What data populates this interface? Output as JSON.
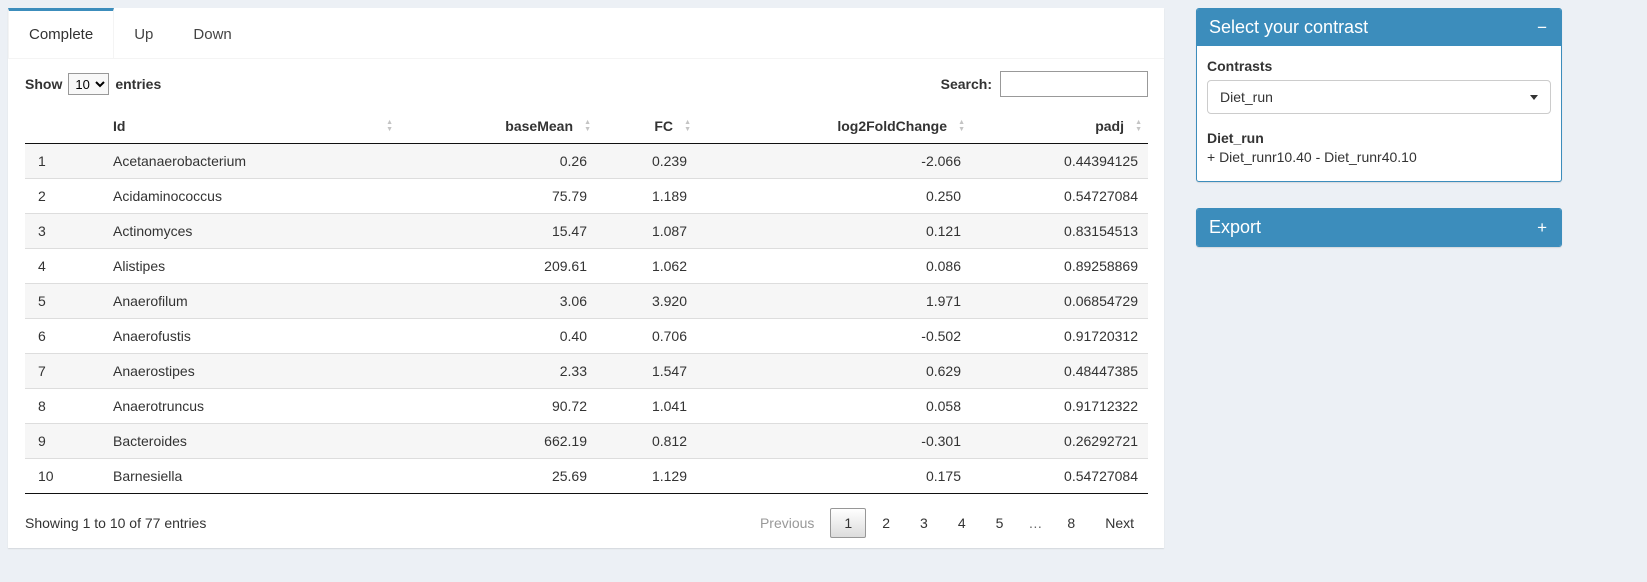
{
  "colors": {
    "accent": "#3c8dbc"
  },
  "tabs": [
    {
      "label": "Complete",
      "active": true
    },
    {
      "label": "Up",
      "active": false
    },
    {
      "label": "Down",
      "active": false
    }
  ],
  "table_controls": {
    "show_label": "Show",
    "page_length": "10",
    "entries_label": "entries",
    "search_label": "Search:",
    "search_value": ""
  },
  "table": {
    "columns": [
      "Id",
      "baseMean",
      "FC",
      "log2FoldChange",
      "padj"
    ],
    "rows": [
      {
        "index": "1",
        "id": "Acetanaerobacterium",
        "baseMean": "0.26",
        "fc": "0.239",
        "log2fc": "-2.066",
        "padj": "0.44394125"
      },
      {
        "index": "2",
        "id": "Acidaminococcus",
        "baseMean": "75.79",
        "fc": "1.189",
        "log2fc": "0.250",
        "padj": "0.54727084"
      },
      {
        "index": "3",
        "id": "Actinomyces",
        "baseMean": "15.47",
        "fc": "1.087",
        "log2fc": "0.121",
        "padj": "0.83154513"
      },
      {
        "index": "4",
        "id": "Alistipes",
        "baseMean": "209.61",
        "fc": "1.062",
        "log2fc": "0.086",
        "padj": "0.89258869"
      },
      {
        "index": "5",
        "id": "Anaerofilum",
        "baseMean": "3.06",
        "fc": "3.920",
        "log2fc": "1.971",
        "padj": "0.06854729"
      },
      {
        "index": "6",
        "id": "Anaerofustis",
        "baseMean": "0.40",
        "fc": "0.706",
        "log2fc": "-0.502",
        "padj": "0.91720312"
      },
      {
        "index": "7",
        "id": "Anaerostipes",
        "baseMean": "2.33",
        "fc": "1.547",
        "log2fc": "0.629",
        "padj": "0.48447385"
      },
      {
        "index": "8",
        "id": "Anaerotruncus",
        "baseMean": "90.72",
        "fc": "1.041",
        "log2fc": "0.058",
        "padj": "0.91712322"
      },
      {
        "index": "9",
        "id": "Bacteroides",
        "baseMean": "662.19",
        "fc": "0.812",
        "log2fc": "-0.301",
        "padj": "0.26292721"
      },
      {
        "index": "10",
        "id": "Barnesiella",
        "baseMean": "25.69",
        "fc": "1.129",
        "log2fc": "0.175",
        "padj": "0.54727084"
      }
    ]
  },
  "table_footer": {
    "info": "Showing 1 to 10 of 77 entries",
    "pagination": [
      {
        "label": "Previous",
        "state": "disabled"
      },
      {
        "label": "1",
        "state": "active"
      },
      {
        "label": "2",
        "state": "normal"
      },
      {
        "label": "3",
        "state": "normal"
      },
      {
        "label": "4",
        "state": "normal"
      },
      {
        "label": "5",
        "state": "normal"
      },
      {
        "label": "…",
        "state": "ellipsis"
      },
      {
        "label": "8",
        "state": "normal"
      },
      {
        "label": "Next",
        "state": "normal"
      }
    ]
  },
  "contrast_panel": {
    "title": "Select your contrast",
    "collapse_icon": "−",
    "contrasts_label": "Contrasts",
    "selected_contrast": "Diet_run",
    "detail_title": "Diet_run",
    "detail_formula": "+ Diet_runr10.40 - Diet_runr40.10"
  },
  "export_panel": {
    "title": "Export",
    "expand_icon": "+"
  }
}
